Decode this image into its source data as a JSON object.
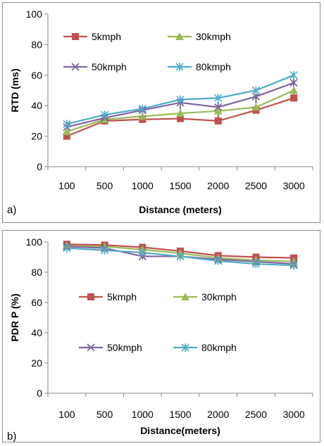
{
  "chart_data": [
    {
      "type": "line",
      "panel_label": "a)",
      "categories": [
        "100",
        "500",
        "1000",
        "1500",
        "2000",
        "2500",
        "3000"
      ],
      "xlabel": "Distance (meters)",
      "ylabel": "RTD (ms)",
      "ylim": [
        0,
        100
      ],
      "yticks": [
        0,
        20,
        40,
        60,
        80,
        100
      ],
      "legend_placement": "top-left",
      "grid": false,
      "error_bars": true,
      "series": [
        {
          "name": "5kmph",
          "marker": "square",
          "color": "#c0504d",
          "values": [
            20,
            30,
            31,
            31.5,
            30,
            37,
            45
          ]
        },
        {
          "name": "30kmph",
          "marker": "triangle",
          "color": "#9bbb59",
          "values": [
            23,
            31,
            33,
            35,
            36.5,
            39,
            50
          ]
        },
        {
          "name": "50kmph",
          "marker": "x",
          "color": "#8064a2",
          "values": [
            26,
            32,
            37,
            42,
            39,
            46,
            55
          ]
        },
        {
          "name": "80kmph",
          "marker": "star",
          "color": "#4bacc6",
          "values": [
            28,
            34,
            38,
            44,
            45,
            50,
            60
          ]
        }
      ]
    },
    {
      "type": "line",
      "panel_label": "b)",
      "categories": [
        "100",
        "500",
        "1000",
        "1500",
        "2000",
        "2500",
        "3000"
      ],
      "xlabel": "Distance(meters)",
      "ylabel": "PDR P (%)",
      "ylim": [
        0,
        100
      ],
      "yticks": [
        0,
        20,
        40,
        60,
        80,
        100
      ],
      "legend_placement": "center-left",
      "grid": false,
      "error_bars": true,
      "series": [
        {
          "name": "5kmph",
          "marker": "square",
          "color": "#c0504d",
          "values": [
            98.5,
            98,
            96.5,
            94,
            91,
            90,
            89.5
          ]
        },
        {
          "name": "30kmph",
          "marker": "triangle",
          "color": "#9bbb59",
          "values": [
            97.5,
            97,
            95,
            92.5,
            89.5,
            88,
            87
          ]
        },
        {
          "name": "50kmph",
          "marker": "x",
          "color": "#8064a2",
          "values": [
            97,
            96,
            90.5,
            90.5,
            88.5,
            87,
            85.5
          ]
        },
        {
          "name": "80kmph",
          "marker": "star",
          "color": "#4bacc6",
          "values": [
            96,
            94.5,
            93,
            90.5,
            87.5,
            85.5,
            84.5
          ]
        }
      ]
    }
  ]
}
